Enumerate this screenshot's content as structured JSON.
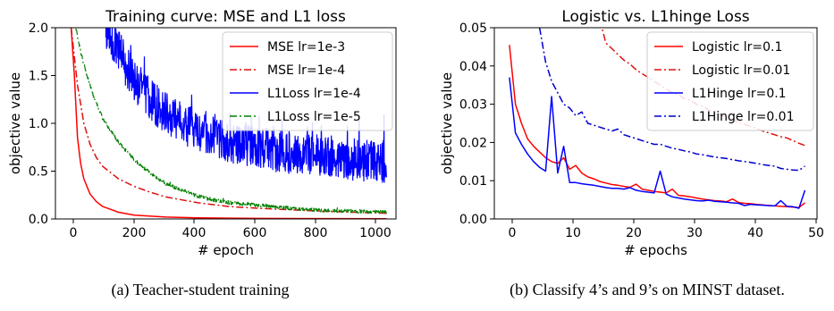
{
  "chart_data": [
    {
      "type": "line",
      "title": "Training curve: MSE and L1 loss",
      "xlabel": "# epoch",
      "ylabel": "objective value",
      "xlim": [
        -50,
        1030
      ],
      "ylim": [
        0,
        2.0
      ],
      "xticks": [
        0,
        200,
        400,
        600,
        800,
        1000
      ],
      "yticks": [
        0.0,
        0.5,
        1.0,
        1.5,
        2.0
      ],
      "ytick_decimals": 1,
      "legend": "top-right",
      "caption": "(a) Teacher-student training",
      "series": [
        {
          "name": "MSE lr=1e-3",
          "color": "#ff0000",
          "dash": "solid",
          "x": [
            0,
            10,
            20,
            30,
            40,
            60,
            80,
            100,
            150,
            200,
            300,
            400,
            500,
            600,
            800,
            1000
          ],
          "y": [
            2.0,
            1.5,
            0.85,
            0.58,
            0.42,
            0.26,
            0.18,
            0.13,
            0.07,
            0.04,
            0.02,
            0.012,
            0.008,
            0.006,
            0.004,
            0.003
          ]
        },
        {
          "name": "MSE lr=1e-4",
          "color": "#dd1111",
          "dash": "dashdot",
          "x": [
            0,
            20,
            40,
            60,
            80,
            100,
            150,
            200,
            250,
            300,
            400,
            500,
            600,
            800,
            1000
          ],
          "y": [
            2.0,
            1.4,
            1.0,
            0.78,
            0.64,
            0.55,
            0.42,
            0.34,
            0.28,
            0.23,
            0.17,
            0.13,
            0.11,
            0.08,
            0.06
          ]
        },
        {
          "name": "L1Loss lr=1e-4",
          "color": "#0000ff",
          "dash": "solid",
          "x": [
            110,
            150,
            200,
            250,
            300,
            350,
            400,
            450,
            500,
            550,
            600,
            650,
            700,
            750,
            800,
            850,
            900,
            950,
            1000
          ],
          "y": [
            2.0,
            1.75,
            1.45,
            1.25,
            1.1,
            1.0,
            0.92,
            0.85,
            0.8,
            0.77,
            0.74,
            0.71,
            0.69,
            0.67,
            0.66,
            0.64,
            0.62,
            0.61,
            0.6
          ],
          "noise": 0.22
        },
        {
          "name": "L1Loss lr=1e-5",
          "color": "#008000",
          "dash": "dashdot",
          "x": [
            15,
            30,
            50,
            75,
            100,
            150,
            200,
            250,
            300,
            350,
            400,
            450,
            500,
            600,
            700,
            800,
            900,
            1000
          ],
          "y": [
            2.0,
            1.75,
            1.5,
            1.25,
            1.05,
            0.8,
            0.62,
            0.48,
            0.37,
            0.3,
            0.24,
            0.2,
            0.17,
            0.14,
            0.11,
            0.09,
            0.08,
            0.07
          ],
          "noise": 0.018
        }
      ]
    },
    {
      "type": "line",
      "title": "Logistic vs. L1hinge Loss",
      "xlabel": "# epochs",
      "ylabel": "objective value",
      "xlim": [
        -2.5,
        51
      ],
      "ylim": [
        0,
        0.05
      ],
      "xticks": [
        0,
        10,
        20,
        30,
        40,
        50
      ],
      "yticks": [
        0.0,
        0.01,
        0.02,
        0.03,
        0.04,
        0.05
      ],
      "ytick_decimals": 2,
      "legend": "top-right",
      "caption": "(b) Classify 4’s and 9’s on MINST dataset.",
      "series": [
        {
          "name": "Logistic lr=0.1",
          "color": "#ff0000",
          "dash": "solid",
          "x": [
            0,
            1,
            2,
            3,
            4,
            5,
            6,
            7,
            8,
            9,
            10,
            11,
            12,
            13,
            14,
            15,
            16,
            17,
            18,
            19,
            20,
            21,
            22,
            23,
            24,
            25,
            26,
            27,
            28,
            29,
            30,
            31,
            32,
            33,
            34,
            35,
            36,
            37,
            38,
            39,
            40,
            41,
            42,
            43,
            44,
            45,
            46,
            47,
            48,
            49
          ],
          "y": [
            0.0455,
            0.03,
            0.025,
            0.021,
            0.019,
            0.0175,
            0.016,
            0.015,
            0.0145,
            0.016,
            0.013,
            0.014,
            0.012,
            0.011,
            0.0105,
            0.0098,
            0.0094,
            0.009,
            0.0088,
            0.0085,
            0.0083,
            0.0091,
            0.0078,
            0.0075,
            0.0072,
            0.007,
            0.0068,
            0.0078,
            0.0062,
            0.006,
            0.0058,
            0.0055,
            0.0052,
            0.005,
            0.0048,
            0.0047,
            0.0045,
            0.0052,
            0.0043,
            0.0041,
            0.004,
            0.0038,
            0.0037,
            0.0035,
            0.0034,
            0.0033,
            0.0032,
            0.0031,
            0.003,
            0.0042
          ]
        },
        {
          "name": "Logistic lr=0.01",
          "color": "#dd1111",
          "dash": "dashdot",
          "x": [
            15,
            16,
            17,
            18,
            19,
            20,
            21,
            22,
            23,
            24,
            25,
            26,
            27,
            28,
            29,
            30,
            31,
            32,
            33,
            34,
            35,
            36,
            37,
            38,
            39,
            40,
            41,
            42,
            43,
            44,
            45,
            46,
            47,
            48,
            49
          ],
          "y": [
            0.052,
            0.046,
            0.0445,
            0.043,
            0.0415,
            0.0405,
            0.039,
            0.038,
            0.037,
            0.036,
            0.035,
            0.034,
            0.033,
            0.0325,
            0.0315,
            0.031,
            0.03,
            0.0295,
            0.0285,
            0.028,
            0.0272,
            0.0265,
            0.026,
            0.0252,
            0.0248,
            0.0242,
            0.0236,
            0.023,
            0.0225,
            0.022,
            0.0215,
            0.0212,
            0.0205,
            0.0198,
            0.0192
          ]
        },
        {
          "name": "L1Hinge lr=0.1",
          "color": "#0000ff",
          "dash": "solid",
          "x": [
            0,
            1,
            2,
            3,
            4,
            5,
            6,
            7,
            8,
            9,
            10,
            11,
            12,
            13,
            14,
            15,
            16,
            17,
            18,
            19,
            20,
            21,
            22,
            23,
            24,
            25,
            26,
            27,
            28,
            29,
            30,
            31,
            32,
            33,
            34,
            35,
            36,
            37,
            38,
            39,
            40,
            41,
            42,
            43,
            44,
            45,
            46,
            47,
            48,
            49
          ],
          "y": [
            0.037,
            0.0225,
            0.0195,
            0.017,
            0.015,
            0.0135,
            0.0125,
            0.032,
            0.012,
            0.019,
            0.0095,
            0.0095,
            0.0092,
            0.009,
            0.0088,
            0.0085,
            0.0082,
            0.008,
            0.008,
            0.0078,
            0.0082,
            0.0075,
            0.0072,
            0.007,
            0.0068,
            0.0125,
            0.0065,
            0.0058,
            0.0055,
            0.0052,
            0.005,
            0.0048,
            0.0047,
            0.0049,
            0.0046,
            0.0045,
            0.0044,
            0.0042,
            0.0041,
            0.0035,
            0.0038,
            0.0037,
            0.0036,
            0.0035,
            0.0034,
            0.0048,
            0.0033,
            0.0032,
            0.0028,
            0.0075
          ]
        },
        {
          "name": "L1Hinge lr=0.01",
          "color": "#0000cc",
          "dash": "dashdot",
          "x": [
            5,
            6,
            7,
            8,
            9,
            10,
            11,
            12,
            13,
            14,
            15,
            16,
            17,
            18,
            19,
            20,
            21,
            22,
            23,
            24,
            25,
            26,
            27,
            28,
            29,
            30,
            31,
            32,
            33,
            34,
            35,
            36,
            37,
            38,
            39,
            40,
            41,
            42,
            43,
            44,
            45,
            46,
            47,
            48,
            49
          ],
          "y": [
            0.05,
            0.041,
            0.036,
            0.033,
            0.03,
            0.029,
            0.027,
            0.028,
            0.025,
            0.0245,
            0.024,
            0.0235,
            0.023,
            0.0235,
            0.022,
            0.0215,
            0.021,
            0.0205,
            0.02,
            0.0195,
            0.0195,
            0.019,
            0.0185,
            0.0182,
            0.0178,
            0.0175,
            0.017,
            0.0168,
            0.0165,
            0.0162,
            0.016,
            0.0158,
            0.0155,
            0.0152,
            0.015,
            0.0148,
            0.0145,
            0.0142,
            0.014,
            0.0138,
            0.0132,
            0.013,
            0.0128,
            0.0127,
            0.0138
          ]
        }
      ]
    }
  ]
}
